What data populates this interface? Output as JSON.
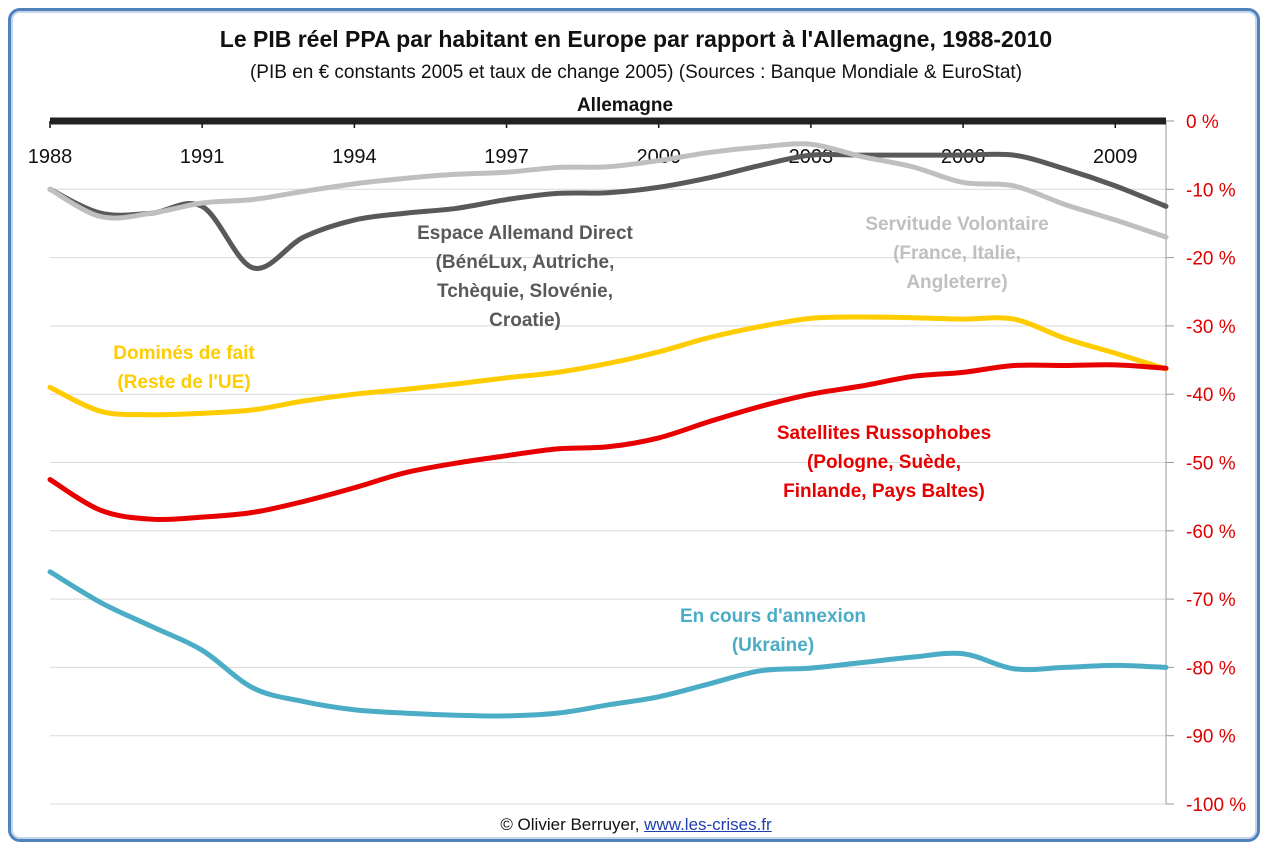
{
  "title": "Le PIB réel PPA par habitant en Europe par rapport à l'Allemagne, 1988-2010",
  "subtitle": "(PIB en € constants 2005 et taux de change 2005) (Sources : Banque Mondiale & EuroStat)",
  "credit": {
    "author": "© Olivier Berruyer,",
    "link": "www.les-crises.fr"
  },
  "chart_data": {
    "type": "line",
    "xlim": [
      1988,
      2010
    ],
    "ylim": [
      -100,
      0
    ],
    "x_ticks": [
      1988,
      1991,
      1994,
      1997,
      2000,
      2003,
      2006,
      2009
    ],
    "y_ticks": [
      0,
      -10,
      -20,
      -30,
      -40,
      -50,
      -60,
      -70,
      -80,
      -90,
      -100
    ],
    "y_tick_labels": [
      "0 %",
      "-10 %",
      "-20 %",
      "-30 %",
      "-40 %",
      "-50 %",
      "-60 %",
      "-70 %",
      "-80 %",
      "-90 %",
      "-100 %"
    ],
    "y_axis_position": "right",
    "grid": "horizontal",
    "reference_line": {
      "label": "Allemagne",
      "value": 0,
      "color": "#222222"
    },
    "series": [
      {
        "name": "Espace Allemand Direct (BénéLux, Autriche, Tchèquie, Slovénie, Croatie)",
        "label_lines": [
          "Espace Allemand Direct",
          "(BénéLux, Autriche,",
          "Tchèquie, Slovénie,",
          "Croatie)"
        ],
        "color": "#595959",
        "x": [
          1988,
          1989,
          1990,
          1991,
          1992,
          1993,
          1994,
          1995,
          1996,
          1997,
          1998,
          1999,
          2000,
          2001,
          2002,
          2003,
          2004,
          2005,
          2006,
          2007,
          2008,
          2009,
          2010
        ],
        "values": [
          -10,
          -13.5,
          -13.5,
          -12.5,
          -21.5,
          -17,
          -14.5,
          -13.5,
          -12.8,
          -11.5,
          -10.6,
          -10.5,
          -9.7,
          -8.3,
          -6.5,
          -5,
          -5,
          -5,
          -5,
          -5,
          -7,
          -9.5,
          -12.5
        ]
      },
      {
        "name": "Servitude Volontaire (France, Italie, Angleterre)",
        "label_lines": [
          "Servitude Volontaire",
          "(France, Italie,",
          "Angleterre)"
        ],
        "color": "#bfbfbf",
        "x": [
          1988,
          1989,
          1990,
          1991,
          1992,
          1993,
          1994,
          1995,
          1996,
          1997,
          1998,
          1999,
          2000,
          2001,
          2002,
          2003,
          2004,
          2005,
          2006,
          2007,
          2008,
          2009,
          2010
        ],
        "values": [
          -10,
          -14,
          -13.5,
          -12,
          -11.5,
          -10.3,
          -9.2,
          -8.4,
          -7.8,
          -7.5,
          -6.8,
          -6.7,
          -5.8,
          -4.6,
          -3.8,
          -3.4,
          -5.2,
          -6.7,
          -9,
          -9.5,
          -12.2,
          -14.5,
          -17
        ]
      },
      {
        "name": "Dominés de fait (Reste de l'UE)",
        "label_lines": [
          "Dominés de fait",
          "(Reste de l'UE)"
        ],
        "color": "#ffcc00",
        "x": [
          1988,
          1989,
          1990,
          1991,
          1992,
          1993,
          1994,
          1995,
          1996,
          1997,
          1998,
          1999,
          2000,
          2001,
          2002,
          2003,
          2004,
          2005,
          2006,
          2007,
          2008,
          2009,
          2010
        ],
        "values": [
          -39,
          -42.5,
          -43,
          -42.8,
          -42.3,
          -41,
          -40,
          -39.3,
          -38.5,
          -37.6,
          -36.8,
          -35.5,
          -33.8,
          -31.7,
          -30.1,
          -28.9,
          -28.7,
          -28.8,
          -29,
          -29,
          -31.8,
          -34,
          -36.3
        ]
      },
      {
        "name": "Satellites Russophobes (Pologne, Suède, Finlande, Pays Baltes)",
        "label_lines": [
          "Satellites Russophobes",
          "(Pologne, Suède,",
          "Finlande, Pays Baltes)"
        ],
        "color": "#e80000",
        "x": [
          1988,
          1989,
          1990,
          1991,
          1992,
          1993,
          1994,
          1995,
          1996,
          1997,
          1998,
          1999,
          2000,
          2001,
          2002,
          2003,
          2004,
          2005,
          2006,
          2007,
          2008,
          2009,
          2010
        ],
        "values": [
          -52.5,
          -57,
          -58.3,
          -58,
          -57.3,
          -55.7,
          -53.7,
          -51.5,
          -50.1,
          -49,
          -48,
          -47.7,
          -46.4,
          -44,
          -41.8,
          -40,
          -38.8,
          -37.4,
          -36.8,
          -35.8,
          -35.8,
          -35.7,
          -36.2
        ]
      },
      {
        "name": "En cours d'annexion (Ukraine)",
        "label_lines": [
          "En cours d'annexion",
          "(Ukraine)"
        ],
        "color": "#4bacc6",
        "x": [
          1988,
          1989,
          1990,
          1991,
          1992,
          1993,
          1994,
          1995,
          1996,
          1997,
          1998,
          1999,
          2000,
          2001,
          2002,
          2003,
          2004,
          2005,
          2006,
          2007,
          2008,
          2009,
          2010
        ],
        "values": [
          -66,
          -70.5,
          -74,
          -77.5,
          -83,
          -85,
          -86.2,
          -86.7,
          -87,
          -87.1,
          -86.7,
          -85.5,
          -84.3,
          -82.4,
          -80.5,
          -80.1,
          -79.3,
          -78.5,
          -78,
          -80.2,
          -80,
          -79.7,
          -80
        ]
      }
    ]
  }
}
